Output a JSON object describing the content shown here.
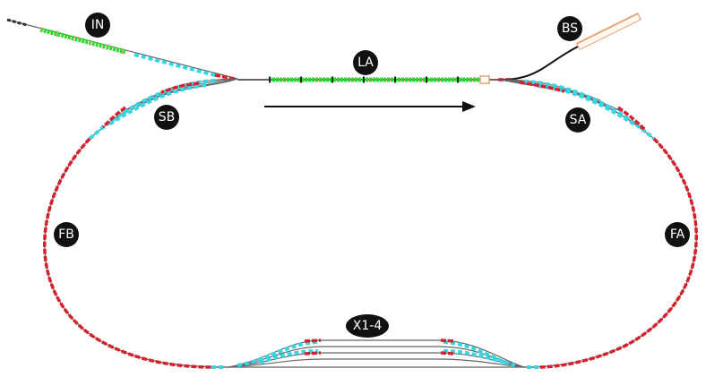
{
  "sections": [
    {
      "label": "IN"
    },
    {
      "label": "BS"
    },
    {
      "label": "LA"
    },
    {
      "label": "SB"
    },
    {
      "label": "SA"
    },
    {
      "label": "FB"
    },
    {
      "label": "FA"
    },
    {
      "label": "X1-4"
    }
  ]
}
